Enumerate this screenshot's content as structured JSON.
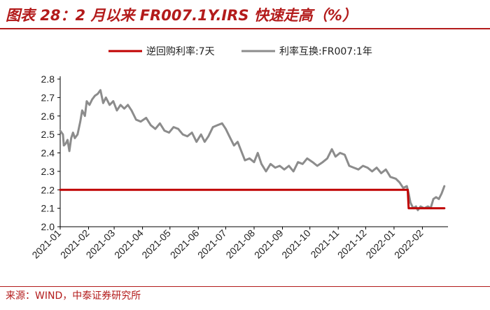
{
  "header": {
    "title": "图表 28：2 月以来 FR007.1Y.IRS 快速走高（%）"
  },
  "footer": {
    "source": "来源：WIND，中泰证券研究所"
  },
  "colors": {
    "accent": "#b31b1b",
    "series_reverse_repo": "#c00000",
    "series_irs": "#8c8c8c"
  },
  "chart_data": {
    "type": "line",
    "title": "2 月以来 FR007.1Y.IRS 快速走高（%）",
    "xlabel": "",
    "ylabel": "",
    "ylim": [
      2.0,
      2.8
    ],
    "yticks": [
      "2.0",
      "2.1",
      "2.2",
      "2.3",
      "2.4",
      "2.5",
      "2.6",
      "2.7",
      "2.8"
    ],
    "x_tick_labels": [
      "2021-01",
      "2021-02",
      "2021-03",
      "2021-04",
      "2021-05",
      "2021-06",
      "2021-07",
      "2021-08",
      "2021-09",
      "2021-10",
      "2021-11",
      "2021-12",
      "2022-01",
      "2022-02"
    ],
    "legend_position": "top",
    "grid": false,
    "series": [
      {
        "name": "逆回购利率:7天",
        "points": [
          [
            "2021-01-01",
            2.2
          ],
          [
            "2022-01-16",
            2.2
          ],
          [
            "2022-01-17",
            2.1
          ],
          [
            "2022-02-25",
            2.1
          ]
        ]
      },
      {
        "name": "利率互换:FR007:1年",
        "points": [
          [
            "2021-01-01",
            2.52
          ],
          [
            "2021-01-04",
            2.5
          ],
          [
            "2021-01-05",
            2.44
          ],
          [
            "2021-01-07",
            2.45
          ],
          [
            "2021-01-09",
            2.47
          ],
          [
            "2021-01-11",
            2.41
          ],
          [
            "2021-01-13",
            2.48
          ],
          [
            "2021-01-15",
            2.51
          ],
          [
            "2021-01-17",
            2.48
          ],
          [
            "2021-01-20",
            2.5
          ],
          [
            "2021-01-23",
            2.57
          ],
          [
            "2021-01-25",
            2.63
          ],
          [
            "2021-01-28",
            2.6
          ],
          [
            "2021-01-30",
            2.68
          ],
          [
            "2021-02-02",
            2.66
          ],
          [
            "2021-02-05",
            2.69
          ],
          [
            "2021-02-08",
            2.71
          ],
          [
            "2021-02-11",
            2.72
          ],
          [
            "2021-02-14",
            2.74
          ],
          [
            "2021-02-17",
            2.67
          ],
          [
            "2021-02-20",
            2.7
          ],
          [
            "2021-02-24",
            2.66
          ],
          [
            "2021-02-28",
            2.68
          ],
          [
            "2021-03-04",
            2.63
          ],
          [
            "2021-03-08",
            2.66
          ],
          [
            "2021-03-12",
            2.64
          ],
          [
            "2021-03-16",
            2.66
          ],
          [
            "2021-03-20",
            2.63
          ],
          [
            "2021-03-25",
            2.58
          ],
          [
            "2021-03-30",
            2.57
          ],
          [
            "2021-04-05",
            2.59
          ],
          [
            "2021-04-10",
            2.55
          ],
          [
            "2021-04-15",
            2.53
          ],
          [
            "2021-04-20",
            2.56
          ],
          [
            "2021-04-25",
            2.52
          ],
          [
            "2021-04-30",
            2.51
          ],
          [
            "2021-05-05",
            2.54
          ],
          [
            "2021-05-10",
            2.53
          ],
          [
            "2021-05-15",
            2.5
          ],
          [
            "2021-05-20",
            2.49
          ],
          [
            "2021-05-25",
            2.51
          ],
          [
            "2021-05-30",
            2.46
          ],
          [
            "2021-06-04",
            2.5
          ],
          [
            "2021-06-08",
            2.46
          ],
          [
            "2021-06-12",
            2.49
          ],
          [
            "2021-06-17",
            2.54
          ],
          [
            "2021-06-22",
            2.55
          ],
          [
            "2021-06-27",
            2.56
          ],
          [
            "2021-07-01",
            2.53
          ],
          [
            "2021-07-05",
            2.49
          ],
          [
            "2021-07-10",
            2.44
          ],
          [
            "2021-07-14",
            2.46
          ],
          [
            "2021-07-18",
            2.41
          ],
          [
            "2021-07-22",
            2.36
          ],
          [
            "2021-07-27",
            2.37
          ],
          [
            "2021-08-01",
            2.35
          ],
          [
            "2021-08-05",
            2.4
          ],
          [
            "2021-08-09",
            2.34
          ],
          [
            "2021-08-14",
            2.3
          ],
          [
            "2021-08-19",
            2.34
          ],
          [
            "2021-08-24",
            2.32
          ],
          [
            "2021-08-29",
            2.33
          ],
          [
            "2021-09-03",
            2.31
          ],
          [
            "2021-09-08",
            2.33
          ],
          [
            "2021-09-13",
            2.3
          ],
          [
            "2021-09-18",
            2.35
          ],
          [
            "2021-09-23",
            2.34
          ],
          [
            "2021-09-28",
            2.37
          ],
          [
            "2021-10-04",
            2.35
          ],
          [
            "2021-10-09",
            2.33
          ],
          [
            "2021-10-15",
            2.35
          ],
          [
            "2021-10-20",
            2.37
          ],
          [
            "2021-10-25",
            2.42
          ],
          [
            "2021-10-29",
            2.38
          ],
          [
            "2021-11-03",
            2.4
          ],
          [
            "2021-11-08",
            2.39
          ],
          [
            "2021-11-13",
            2.33
          ],
          [
            "2021-11-18",
            2.32
          ],
          [
            "2021-11-23",
            2.31
          ],
          [
            "2021-11-28",
            2.33
          ],
          [
            "2021-12-03",
            2.32
          ],
          [
            "2021-12-08",
            2.3
          ],
          [
            "2021-12-13",
            2.32
          ],
          [
            "2021-12-18",
            2.29
          ],
          [
            "2021-12-23",
            2.31
          ],
          [
            "2021-12-28",
            2.27
          ],
          [
            "2022-01-03",
            2.26
          ],
          [
            "2022-01-07",
            2.24
          ],
          [
            "2022-01-11",
            2.21
          ],
          [
            "2022-01-15",
            2.22
          ],
          [
            "2022-01-17",
            2.18
          ],
          [
            "2022-01-19",
            2.13
          ],
          [
            "2022-01-22",
            2.1
          ],
          [
            "2022-01-25",
            2.11
          ],
          [
            "2022-01-27",
            2.09
          ],
          [
            "2022-01-30",
            2.11
          ],
          [
            "2022-02-03",
            2.1
          ],
          [
            "2022-02-07",
            2.11
          ],
          [
            "2022-02-10",
            2.1
          ],
          [
            "2022-02-13",
            2.15
          ],
          [
            "2022-02-16",
            2.16
          ],
          [
            "2022-02-19",
            2.15
          ],
          [
            "2022-02-22",
            2.18
          ],
          [
            "2022-02-25",
            2.22
          ]
        ]
      }
    ]
  }
}
